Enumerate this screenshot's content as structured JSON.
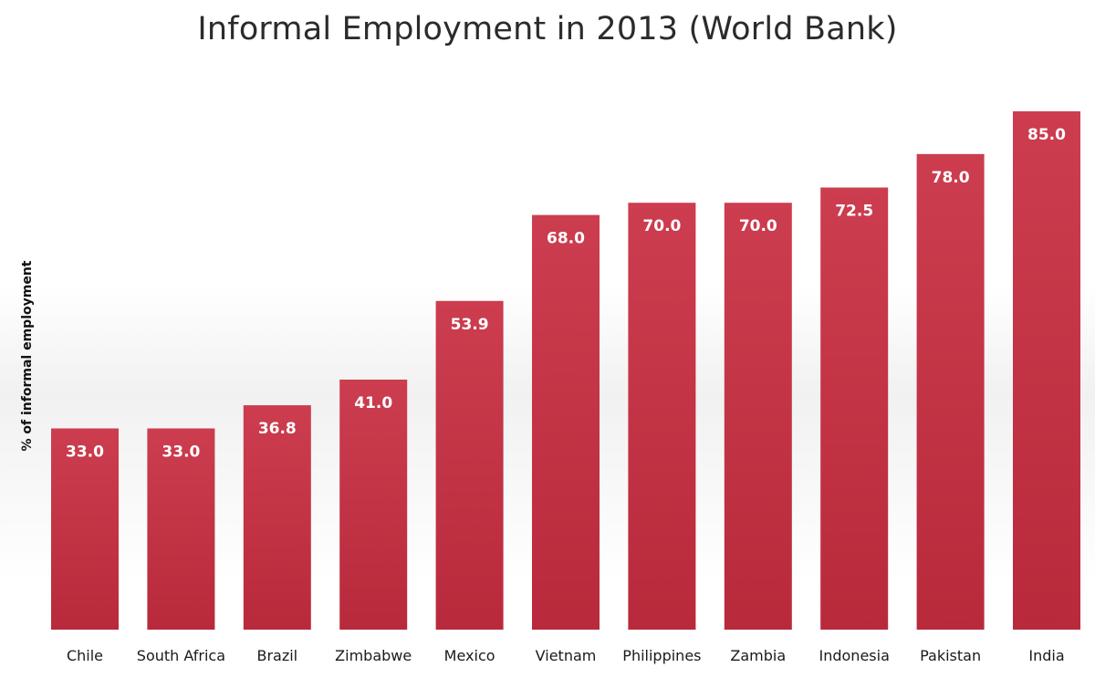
{
  "chart_data": {
    "type": "bar",
    "title": "Informal Employment in 2013 (World Bank)",
    "ylabel": "% of informal employment",
    "xlabel": "",
    "categories": [
      "Chile",
      "South Africa",
      "Brazil",
      "Zimbabwe",
      "Mexico",
      "Vietnam",
      "Philippines",
      "Zambia",
      "Indonesia",
      "Pakistan",
      "India"
    ],
    "values": [
      33.0,
      33.0,
      36.8,
      41.0,
      53.9,
      68.0,
      70.0,
      70.0,
      72.5,
      78.0,
      85.0
    ],
    "value_labels": [
      "33.0",
      "33.0",
      "36.8",
      "41.0",
      "53.9",
      "68.0",
      "70.0",
      "70.0",
      "72.5",
      "78.0",
      "85.0"
    ],
    "ylim": [
      0,
      85
    ],
    "grid": false,
    "legend": "none",
    "colors": {
      "bar_top": "#cc3d4f",
      "bar_bottom": "#b82a3b",
      "value_text": "#ffffff",
      "title_text": "#2b2b2b"
    }
  }
}
